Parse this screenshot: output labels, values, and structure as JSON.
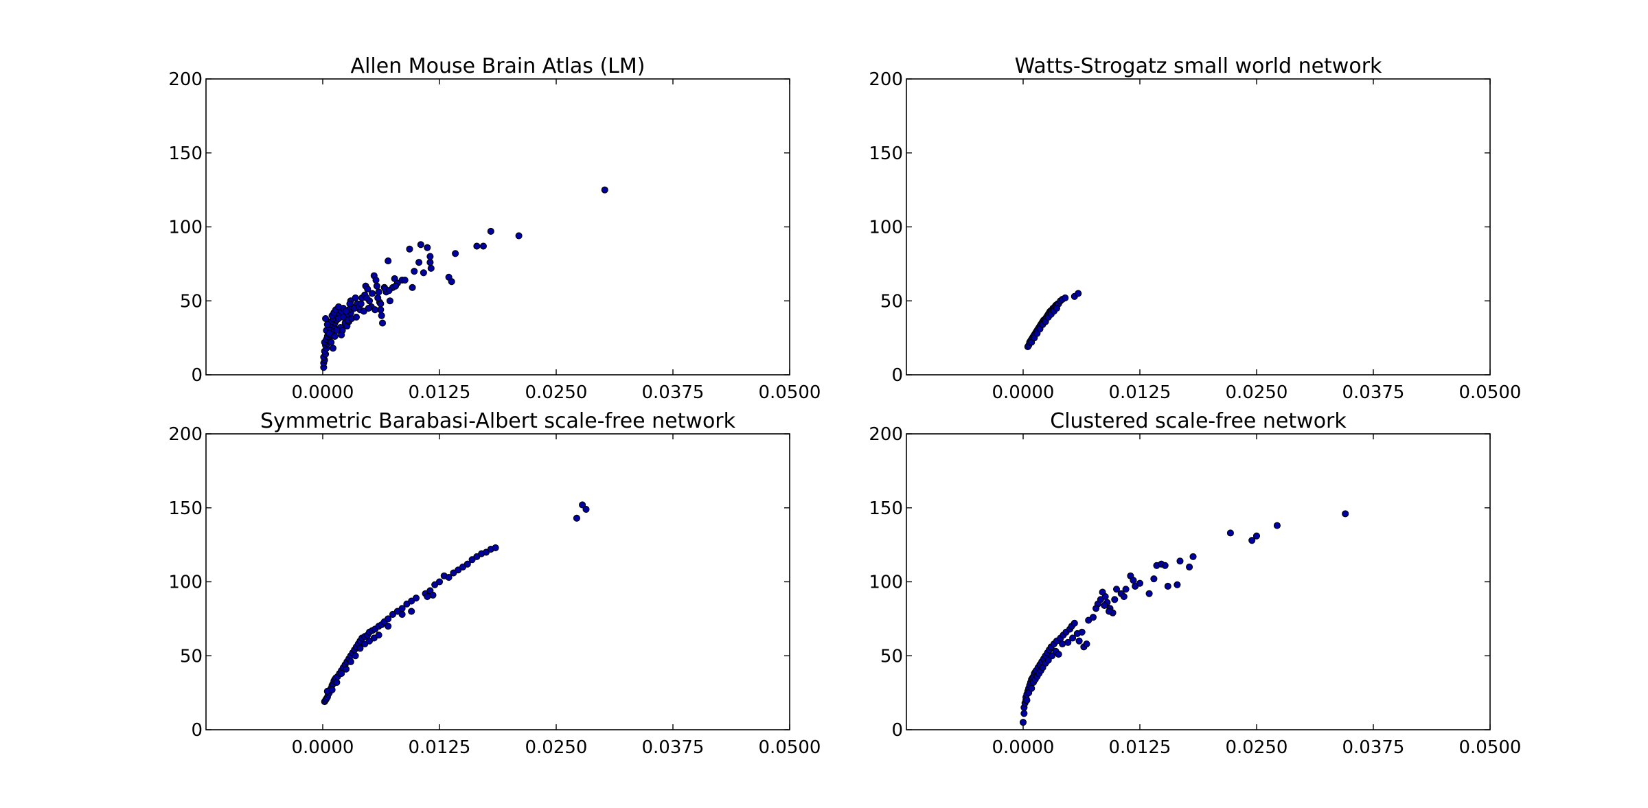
{
  "figure": {
    "colors": {
      "marker_fill": "#0000a0",
      "marker_edge": "#000000",
      "axes": "#000000",
      "background": "#ffffff"
    }
  },
  "chart_data": [
    {
      "type": "scatter",
      "title": "Allen Mouse Brain Atlas (LM)",
      "xlabel": "",
      "ylabel": "",
      "xlim": [
        -0.0125,
        0.05
      ],
      "ylim": [
        0,
        200
      ],
      "xticks": [
        "0.0000",
        "0.0125",
        "0.0250",
        "0.0375",
        "0.0500"
      ],
      "yticks": [
        "0",
        "50",
        "100",
        "150",
        "200"
      ],
      "grid": false,
      "points": [
        [
          0.0001,
          5
        ],
        [
          0.0001,
          8
        ],
        [
          0.0002,
          10
        ],
        [
          0.0001,
          12
        ],
        [
          0.0003,
          14
        ],
        [
          0.0002,
          16
        ],
        [
          0.0004,
          18
        ],
        [
          0.0003,
          20
        ],
        [
          0.0005,
          21
        ],
        [
          0.0002,
          22
        ],
        [
          0.0006,
          23
        ],
        [
          0.0004,
          24
        ],
        [
          0.0007,
          25
        ],
        [
          0.0005,
          26
        ],
        [
          0.0008,
          27
        ],
        [
          0.0006,
          28
        ],
        [
          0.0009,
          29
        ],
        [
          0.0004,
          30
        ],
        [
          0.001,
          31
        ],
        [
          0.0007,
          32
        ],
        [
          0.0012,
          33
        ],
        [
          0.0008,
          34
        ],
        [
          0.0013,
          35
        ],
        [
          0.0009,
          36
        ],
        [
          0.0015,
          37
        ],
        [
          0.0011,
          38
        ],
        [
          0.0016,
          39
        ],
        [
          0.001,
          40
        ],
        [
          0.0018,
          41
        ],
        [
          0.0012,
          42
        ],
        [
          0.002,
          43
        ],
        [
          0.0014,
          44
        ],
        [
          0.0022,
          45
        ],
        [
          0.0017,
          46
        ],
        [
          0.0024,
          35
        ],
        [
          0.0019,
          32
        ],
        [
          0.0026,
          33
        ],
        [
          0.0021,
          30
        ],
        [
          0.0028,
          36
        ],
        [
          0.0025,
          40
        ],
        [
          0.003,
          42
        ],
        [
          0.0028,
          44
        ],
        [
          0.0032,
          46
        ],
        [
          0.003,
          50
        ],
        [
          0.0035,
          52
        ],
        [
          0.0037,
          48
        ],
        [
          0.004,
          44
        ],
        [
          0.0042,
          52
        ],
        [
          0.0045,
          54
        ],
        [
          0.0046,
          60
        ],
        [
          0.0048,
          58
        ],
        [
          0.005,
          50
        ],
        [
          0.0052,
          46
        ],
        [
          0.0055,
          67
        ],
        [
          0.0057,
          64
        ],
        [
          0.0058,
          60
        ],
        [
          0.006,
          56
        ],
        [
          0.0061,
          49
        ],
        [
          0.0062,
          44
        ],
        [
          0.0063,
          40
        ],
        [
          0.0064,
          35
        ],
        [
          0.0066,
          59
        ],
        [
          0.0068,
          56
        ],
        [
          0.007,
          77
        ],
        [
          0.0072,
          50
        ],
        [
          0.0075,
          59
        ],
        [
          0.0077,
          65
        ],
        [
          0.008,
          62
        ],
        [
          0.0085,
          64
        ],
        [
          0.0088,
          64
        ],
        [
          0.0093,
          85
        ],
        [
          0.0096,
          59
        ],
        [
          0.0098,
          70
        ],
        [
          0.0103,
          76
        ],
        [
          0.0105,
          88
        ],
        [
          0.0108,
          69
        ],
        [
          0.0112,
          86
        ],
        [
          0.0115,
          80
        ],
        [
          0.0115,
          76
        ],
        [
          0.0116,
          72
        ],
        [
          0.0135,
          66
        ],
        [
          0.0138,
          63
        ],
        [
          0.0142,
          82
        ],
        [
          0.0165,
          87
        ],
        [
          0.0172,
          87
        ],
        [
          0.018,
          97
        ],
        [
          0.021,
          94
        ],
        [
          0.0302,
          125
        ],
        [
          0.0003,
          38
        ],
        [
          0.0005,
          34
        ],
        [
          0.0007,
          28
        ],
        [
          0.0009,
          22
        ],
        [
          0.0011,
          18
        ],
        [
          0.0013,
          26
        ],
        [
          0.0015,
          30
        ],
        [
          0.0017,
          38
        ],
        [
          0.002,
          27
        ],
        [
          0.0022,
          39
        ],
        [
          0.0025,
          43
        ],
        [
          0.0027,
          37
        ],
        [
          0.0029,
          48
        ],
        [
          0.0031,
          38
        ],
        [
          0.0034,
          45
        ],
        [
          0.0036,
          39
        ],
        [
          0.0039,
          46
        ],
        [
          0.0041,
          48
        ],
        [
          0.0044,
          43
        ],
        [
          0.0047,
          52
        ],
        [
          0.0049,
          45
        ],
        [
          0.0053,
          55
        ],
        [
          0.0056,
          44
        ],
        [
          0.0059,
          52
        ],
        [
          0.0062,
          48
        ],
        [
          0.0067,
          58
        ],
        [
          0.0071,
          57
        ],
        [
          0.0078,
          60
        ]
      ]
    },
    {
      "type": "scatter",
      "title": "Watts-Strogatz small world network",
      "xlabel": "",
      "ylabel": "",
      "xlim": [
        -0.0125,
        0.05
      ],
      "ylim": [
        0,
        200
      ],
      "xticks": [
        "0.0000",
        "0.0125",
        "0.0250",
        "0.0375",
        "0.0500"
      ],
      "yticks": [
        "0",
        "50",
        "100",
        "150",
        "200"
      ],
      "grid": false,
      "points": [
        [
          0.0005,
          19
        ],
        [
          0.0006,
          20
        ],
        [
          0.0007,
          22
        ],
        [
          0.0008,
          23
        ],
        [
          0.0009,
          24
        ],
        [
          0.001,
          25
        ],
        [
          0.0011,
          26
        ],
        [
          0.0012,
          27
        ],
        [
          0.0013,
          28
        ],
        [
          0.0014,
          29
        ],
        [
          0.0015,
          30
        ],
        [
          0.0016,
          31
        ],
        [
          0.0017,
          32
        ],
        [
          0.0018,
          33
        ],
        [
          0.0019,
          34
        ],
        [
          0.002,
          35
        ],
        [
          0.0021,
          36
        ],
        [
          0.0022,
          37
        ],
        [
          0.0023,
          37
        ],
        [
          0.0024,
          38
        ],
        [
          0.0025,
          39
        ],
        [
          0.0026,
          40
        ],
        [
          0.0027,
          41
        ],
        [
          0.0028,
          42
        ],
        [
          0.0029,
          43
        ],
        [
          0.003,
          43
        ],
        [
          0.0031,
          44
        ],
        [
          0.0032,
          45
        ],
        [
          0.0033,
          45
        ],
        [
          0.0034,
          46
        ],
        [
          0.0035,
          47
        ],
        [
          0.0036,
          47
        ],
        [
          0.0037,
          48
        ],
        [
          0.0038,
          48
        ],
        [
          0.004,
          50
        ],
        [
          0.0042,
          51
        ],
        [
          0.0045,
          52
        ],
        [
          0.0055,
          53
        ],
        [
          0.0059,
          55
        ],
        [
          0.0009,
          22
        ],
        [
          0.0012,
          25
        ],
        [
          0.0015,
          28
        ],
        [
          0.0018,
          31
        ],
        [
          0.0021,
          34
        ],
        [
          0.0024,
          36
        ],
        [
          0.0027,
          39
        ],
        [
          0.003,
          41
        ],
        [
          0.0033,
          43
        ],
        [
          0.0036,
          45
        ]
      ]
    },
    {
      "type": "scatter",
      "title": "Symmetric Barabasi-Albert scale-free network",
      "xlabel": "",
      "ylabel": "",
      "xlim": [
        -0.0125,
        0.05
      ],
      "ylim": [
        0,
        200
      ],
      "xticks": [
        "0.0000",
        "0.0125",
        "0.0250",
        "0.0375",
        "0.0500"
      ],
      "yticks": [
        "0",
        "50",
        "100",
        "150",
        "200"
      ],
      "grid": false,
      "points": [
        [
          0.0002,
          19
        ],
        [
          0.0003,
          20
        ],
        [
          0.0004,
          21
        ],
        [
          0.0005,
          22
        ],
        [
          0.0006,
          24
        ],
        [
          0.0007,
          25
        ],
        [
          0.0008,
          27
        ],
        [
          0.0009,
          28
        ],
        [
          0.001,
          30
        ],
        [
          0.0011,
          31
        ],
        [
          0.0012,
          33
        ],
        [
          0.0013,
          34
        ],
        [
          0.0014,
          35
        ],
        [
          0.0016,
          36
        ],
        [
          0.0018,
          38
        ],
        [
          0.002,
          40
        ],
        [
          0.0022,
          42
        ],
        [
          0.0024,
          44
        ],
        [
          0.0026,
          46
        ],
        [
          0.0028,
          48
        ],
        [
          0.003,
          50
        ],
        [
          0.0032,
          52
        ],
        [
          0.0034,
          54
        ],
        [
          0.0036,
          56
        ],
        [
          0.0038,
          58
        ],
        [
          0.004,
          60
        ],
        [
          0.0042,
          62
        ],
        [
          0.0045,
          63
        ],
        [
          0.0048,
          64
        ],
        [
          0.005,
          66
        ],
        [
          0.0053,
          67
        ],
        [
          0.0056,
          68
        ],
        [
          0.006,
          70
        ],
        [
          0.0063,
          71
        ],
        [
          0.0066,
          73
        ],
        [
          0.007,
          75
        ],
        [
          0.0075,
          78
        ],
        [
          0.008,
          80
        ],
        [
          0.0085,
          82
        ],
        [
          0.009,
          85
        ],
        [
          0.0095,
          87
        ],
        [
          0.01,
          89
        ],
        [
          0.011,
          92
        ],
        [
          0.0115,
          94
        ],
        [
          0.012,
          98
        ],
        [
          0.0125,
          100
        ],
        [
          0.013,
          104
        ],
        [
          0.014,
          106
        ],
        [
          0.0145,
          108
        ],
        [
          0.015,
          110
        ],
        [
          0.0155,
          112
        ],
        [
          0.016,
          115
        ],
        [
          0.0165,
          117
        ],
        [
          0.017,
          119
        ],
        [
          0.0175,
          120
        ],
        [
          0.018,
          122
        ],
        [
          0.0185,
          123
        ],
        [
          0.0272,
          143
        ],
        [
          0.0278,
          152
        ],
        [
          0.0282,
          149
        ],
        [
          0.0005,
          26
        ],
        [
          0.001,
          27
        ],
        [
          0.0015,
          32
        ],
        [
          0.002,
          38
        ],
        [
          0.0025,
          41
        ],
        [
          0.003,
          46
        ],
        [
          0.0035,
          50
        ],
        [
          0.004,
          55
        ],
        [
          0.0045,
          58
        ],
        [
          0.005,
          60
        ],
        [
          0.0055,
          62
        ],
        [
          0.006,
          64
        ],
        [
          0.007,
          70
        ],
        [
          0.0085,
          78
        ],
        [
          0.0095,
          80
        ],
        [
          0.0112,
          90
        ],
        [
          0.0118,
          91
        ],
        [
          0.0135,
          103
        ]
      ]
    },
    {
      "type": "scatter",
      "title": "Clustered scale-free network",
      "xlabel": "",
      "ylabel": "",
      "xlim": [
        -0.0125,
        0.05
      ],
      "ylim": [
        0,
        200
      ],
      "xticks": [
        "0.0000",
        "0.0125",
        "0.0250",
        "0.0375",
        "0.0500"
      ],
      "yticks": [
        "0",
        "50",
        "100",
        "150",
        "200"
      ],
      "grid": false,
      "points": [
        [
          0.0,
          5
        ],
        [
          0.0001,
          11
        ],
        [
          0.0001,
          15
        ],
        [
          0.0002,
          18
        ],
        [
          0.0003,
          20
        ],
        [
          0.0003,
          22
        ],
        [
          0.0004,
          24
        ],
        [
          0.0005,
          26
        ],
        [
          0.0006,
          28
        ],
        [
          0.0007,
          30
        ],
        [
          0.0008,
          32
        ],
        [
          0.0009,
          34
        ],
        [
          0.001,
          35
        ],
        [
          0.0011,
          36
        ],
        [
          0.0012,
          38
        ],
        [
          0.0013,
          39
        ],
        [
          0.0014,
          40
        ],
        [
          0.0016,
          42
        ],
        [
          0.0018,
          44
        ],
        [
          0.002,
          46
        ],
        [
          0.0022,
          48
        ],
        [
          0.0024,
          50
        ],
        [
          0.0026,
          52
        ],
        [
          0.0028,
          54
        ],
        [
          0.003,
          56
        ],
        [
          0.0033,
          58
        ],
        [
          0.0036,
          60
        ],
        [
          0.004,
          62
        ],
        [
          0.0043,
          64
        ],
        [
          0.0046,
          66
        ],
        [
          0.005,
          68
        ],
        [
          0.0052,
          70
        ],
        [
          0.0055,
          72
        ],
        [
          0.0058,
          65
        ],
        [
          0.006,
          60
        ],
        [
          0.0065,
          56
        ],
        [
          0.007,
          74
        ],
        [
          0.0075,
          76
        ],
        [
          0.008,
          85
        ],
        [
          0.0083,
          88
        ],
        [
          0.0085,
          93
        ],
        [
          0.0088,
          90
        ],
        [
          0.009,
          86
        ],
        [
          0.0093,
          82
        ],
        [
          0.0096,
          79
        ],
        [
          0.01,
          95
        ],
        [
          0.0105,
          92
        ],
        [
          0.011,
          95
        ],
        [
          0.0115,
          104
        ],
        [
          0.012,
          97
        ],
        [
          0.0125,
          99
        ],
        [
          0.0135,
          92
        ],
        [
          0.014,
          102
        ],
        [
          0.0143,
          111
        ],
        [
          0.0148,
          112
        ],
        [
          0.0152,
          111
        ],
        [
          0.0155,
          97
        ],
        [
          0.0165,
          98
        ],
        [
          0.0168,
          114
        ],
        [
          0.0178,
          110
        ],
        [
          0.0182,
          117
        ],
        [
          0.0222,
          133
        ],
        [
          0.0245,
          128
        ],
        [
          0.025,
          131
        ],
        [
          0.0272,
          138
        ],
        [
          0.0345,
          146
        ],
        [
          0.0004,
          20
        ],
        [
          0.0006,
          25
        ],
        [
          0.0009,
          28
        ],
        [
          0.0011,
          32
        ],
        [
          0.0013,
          34
        ],
        [
          0.0015,
          36
        ],
        [
          0.0017,
          38
        ],
        [
          0.0019,
          40
        ],
        [
          0.0021,
          42
        ],
        [
          0.0024,
          45
        ],
        [
          0.0027,
          47
        ],
        [
          0.0031,
          50
        ],
        [
          0.0035,
          53
        ],
        [
          0.0038,
          51
        ],
        [
          0.0042,
          58
        ],
        [
          0.0048,
          59
        ],
        [
          0.0053,
          62
        ],
        [
          0.0063,
          66
        ],
        [
          0.0068,
          58
        ],
        [
          0.0078,
          82
        ],
        [
          0.0087,
          84
        ],
        [
          0.0092,
          80
        ],
        [
          0.0098,
          88
        ],
        [
          0.0108,
          90
        ],
        [
          0.0118,
          101
        ]
      ]
    }
  ]
}
